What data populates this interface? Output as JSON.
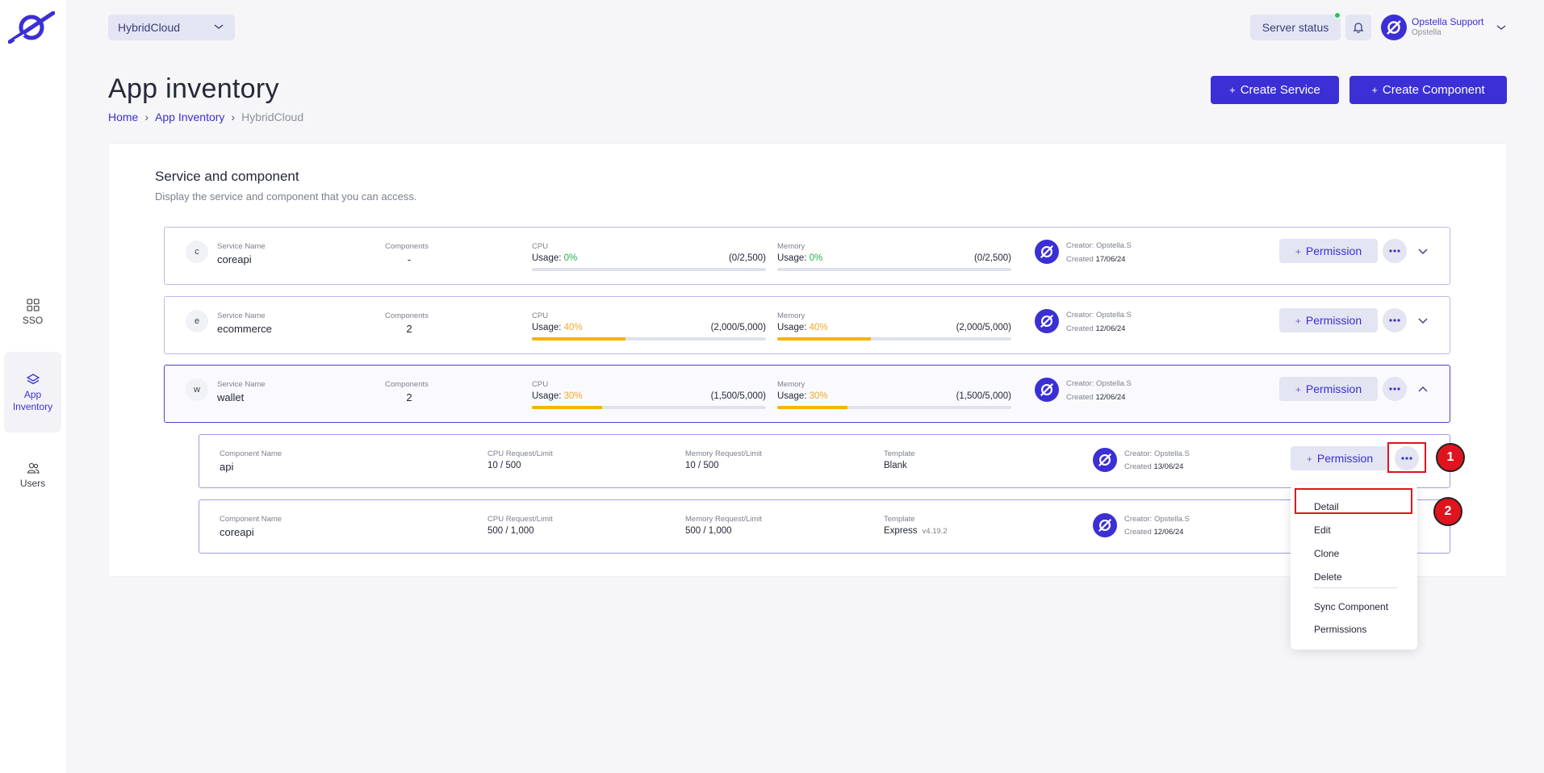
{
  "header": {
    "selector_value": "HybridCloud",
    "server_status_label": "Server status",
    "user_name": "Opstella Support",
    "user_org": "Opstella"
  },
  "sidebar": {
    "items": [
      {
        "label": "SSO",
        "icon": "grid-icon"
      },
      {
        "label": "App Inventory",
        "icon": "layers-icon"
      },
      {
        "label": "Users",
        "icon": "users-icon"
      }
    ]
  },
  "page": {
    "title": "App inventory",
    "breadcrumb": [
      "Home",
      "App Inventory",
      "HybridCloud"
    ],
    "create_service_label": "Create Service",
    "create_component_label": "Create Component"
  },
  "section": {
    "title": "Service and component",
    "subtitle": "Display the service and component that you can access."
  },
  "labels": {
    "service_name": "Service Name",
    "components": "Components",
    "cpu": "CPU",
    "memory": "Memory",
    "usage_prefix": "Usage:",
    "component_name": "Component Name",
    "cpu_req_limit": "CPU Request/Limit",
    "mem_req_limit": "Memory Request/Limit",
    "template": "Template",
    "created_prefix": "Created",
    "permission": "Permission"
  },
  "services": [
    {
      "letter": "c",
      "name": "coreapi",
      "components": "-",
      "cpu_pct": "0%",
      "cpu_frac": "(0/2,500)",
      "cpu_fill": 0,
      "mem_pct": "0%",
      "mem_frac": "(0/2,500)",
      "mem_fill": 0,
      "creator": "Creator: Opstella.S",
      "created": "17/06/24",
      "expanded": false
    },
    {
      "letter": "e",
      "name": "ecommerce",
      "components": "2",
      "cpu_pct": "40%",
      "cpu_frac": "(2,000/5,000)",
      "cpu_fill": 0.4,
      "mem_pct": "40%",
      "mem_frac": "(2,000/5,000)",
      "mem_fill": 0.4,
      "creator": "Creator: Opstella.S",
      "created": "12/06/24",
      "expanded": false
    },
    {
      "letter": "w",
      "name": "wallet",
      "components": "2",
      "cpu_pct": "30%",
      "cpu_frac": "(1,500/5,000)",
      "cpu_fill": 0.3,
      "mem_pct": "30%",
      "mem_frac": "(1,500/5,000)",
      "mem_fill": 0.3,
      "creator": "Creator: Opstella.S",
      "created": "12/06/24",
      "expanded": true
    }
  ],
  "components": [
    {
      "name": "api",
      "cpu": "10 / 500",
      "mem": "10 / 500",
      "template": "Blank",
      "version": "",
      "creator": "Creator: Opstella.S",
      "created": "13/06/24"
    },
    {
      "name": "coreapi",
      "cpu": "500 / 1,000",
      "mem": "500 / 1,000",
      "template": "Express",
      "version": "v4.19.2",
      "creator": "Creator: Opstella.S",
      "created": "12/06/24"
    }
  ],
  "menu": {
    "items": [
      "Detail",
      "Edit",
      "Clone",
      "Delete",
      "Sync Component",
      "Permissions"
    ]
  },
  "annotations": [
    "1",
    "2"
  ]
}
